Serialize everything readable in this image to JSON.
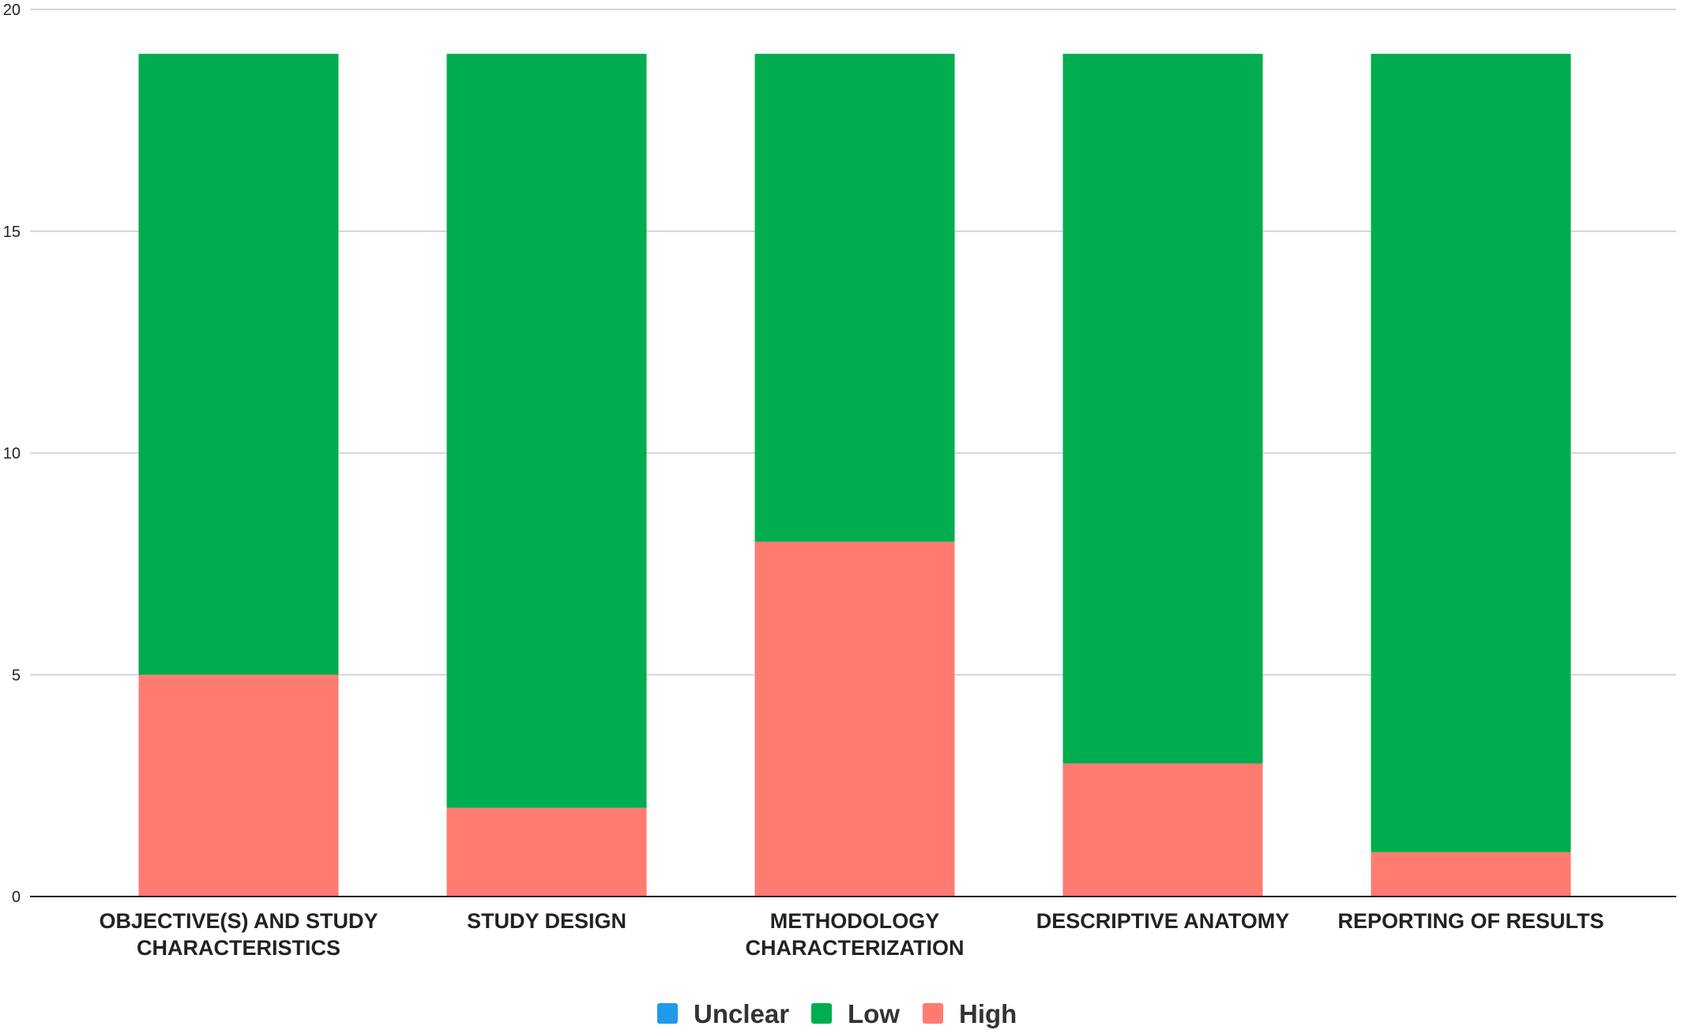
{
  "chart_data": {
    "type": "bar",
    "stacked": true,
    "categories": [
      "OBJECTIVE(S) AND STUDY CHARACTERISTICS",
      "STUDY DESIGN",
      "METHODOLOGY CHARACTERIZATION",
      "DESCRIPTIVE ANATOMY",
      "REPORTING OF RESULTS"
    ],
    "category_lines": [
      [
        "OBJECTIVE(S) AND STUDY",
        "CHARACTERISTICS"
      ],
      [
        "STUDY DESIGN"
      ],
      [
        "METHODOLOGY",
        "CHARACTERIZATION"
      ],
      [
        "DESCRIPTIVE ANATOMY"
      ],
      [
        "REPORTING OF RESULTS"
      ]
    ],
    "series": [
      {
        "name": "Unclear",
        "color": "#1e9be9",
        "values": [
          0,
          0,
          0,
          0,
          0
        ]
      },
      {
        "name": "Low",
        "color": "#00ad4e",
        "values": [
          14,
          17,
          11,
          16,
          18
        ]
      },
      {
        "name": "High",
        "color": "#ff7b72",
        "values": [
          5,
          2,
          8,
          3,
          1
        ]
      }
    ],
    "stack_order": [
      "High",
      "Low",
      "Unclear"
    ],
    "y_ticks": [
      0,
      5,
      10,
      15,
      20
    ],
    "ylim": [
      0,
      20
    ],
    "grid": true,
    "legend_position": "bottom-center",
    "title": "",
    "xlabel": "",
    "ylabel": ""
  }
}
